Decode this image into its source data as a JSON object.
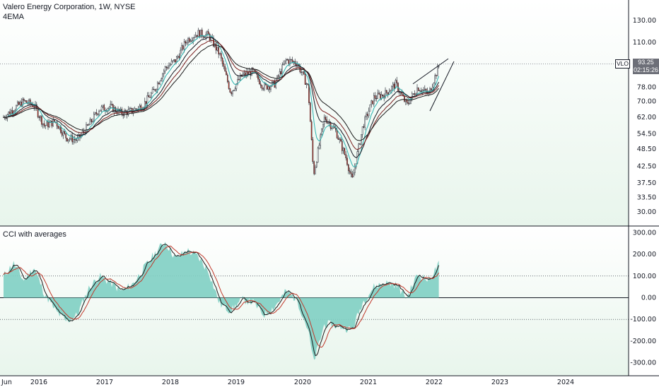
{
  "header": {
    "symbol_title": "Valero Energy Corporation, 1W, NYSE",
    "indicator_label": "4EMA",
    "pane_label": "CCI with averages",
    "price_badge": "VLO",
    "last_price": "93.25",
    "countdown": "02:15:26"
  },
  "colors": {
    "up_candle": "#ffffff",
    "down_candle": "#c0392b",
    "ema_fast": "#2ab3b0",
    "ema_mid1": "#131722",
    "ema_mid2": "#7a1f1f",
    "ema_slow": "#1a1a1a",
    "cci_fill": "#7fcfc3",
    "cci_line": "#1a1a1a",
    "cci_avg": "#c0392b",
    "trendline": "#131722"
  },
  "chart_data": [
    {
      "type": "candlestick",
      "title": "Valero Energy Corporation, 1W, NYSE",
      "y_scale": "log",
      "y_ticks": [
        "130.00",
        "110.00",
        "93.25",
        "78.00",
        "70.00",
        "62.00",
        "54.50",
        "48.50",
        "42.50",
        "37.50",
        "33.50",
        "30.00"
      ],
      "x_ticks": [
        "Jun",
        "2016",
        "2017",
        "2018",
        "2019",
        "2020",
        "2021",
        "2022",
        "2023",
        "2024"
      ],
      "close_series_approx": [
        {
          "date": "2015-06",
          "close": 62
        },
        {
          "date": "2015-08",
          "close": 66
        },
        {
          "date": "2015-10",
          "close": 70
        },
        {
          "date": "2015-12",
          "close": 68
        },
        {
          "date": "2016-02",
          "close": 58
        },
        {
          "date": "2016-04",
          "close": 60
        },
        {
          "date": "2016-06",
          "close": 53
        },
        {
          "date": "2016-08",
          "close": 52
        },
        {
          "date": "2016-10",
          "close": 58
        },
        {
          "date": "2016-12",
          "close": 66
        },
        {
          "date": "2017-02",
          "close": 67
        },
        {
          "date": "2017-04",
          "close": 64
        },
        {
          "date": "2017-06",
          "close": 65
        },
        {
          "date": "2017-08",
          "close": 68
        },
        {
          "date": "2017-10",
          "close": 76
        },
        {
          "date": "2017-12",
          "close": 90
        },
        {
          "date": "2018-02",
          "close": 96
        },
        {
          "date": "2018-04",
          "close": 112
        },
        {
          "date": "2018-06",
          "close": 118
        },
        {
          "date": "2018-08",
          "close": 116
        },
        {
          "date": "2018-10",
          "close": 100
        },
        {
          "date": "2018-12",
          "close": 75
        },
        {
          "date": "2019-02",
          "close": 85
        },
        {
          "date": "2019-04",
          "close": 88
        },
        {
          "date": "2019-06",
          "close": 78
        },
        {
          "date": "2019-08",
          "close": 80
        },
        {
          "date": "2019-10",
          "close": 96
        },
        {
          "date": "2019-12",
          "close": 94
        },
        {
          "date": "2020-02",
          "close": 78
        },
        {
          "date": "2020-03",
          "close": 40
        },
        {
          "date": "2020-05",
          "close": 62
        },
        {
          "date": "2020-07",
          "close": 56
        },
        {
          "date": "2020-09",
          "close": 45
        },
        {
          "date": "2020-10",
          "close": 38
        },
        {
          "date": "2020-12",
          "close": 58
        },
        {
          "date": "2021-02",
          "close": 72
        },
        {
          "date": "2021-04",
          "close": 74
        },
        {
          "date": "2021-06",
          "close": 80
        },
        {
          "date": "2021-08",
          "close": 68
        },
        {
          "date": "2021-10",
          "close": 78
        },
        {
          "date": "2021-12",
          "close": 74
        },
        {
          "date": "2022-02",
          "close": 93.25
        }
      ]
    },
    {
      "type": "area",
      "title": "CCI with averages",
      "y_ticks": [
        "300.00",
        "200.00",
        "100.00",
        "0.00",
        "-100.00",
        "-200.00",
        "-300.00"
      ],
      "reference_lines": [
        100,
        0,
        -100
      ],
      "cci_series_approx": [
        {
          "date": "2015-06",
          "value": 100
        },
        {
          "date": "2015-08",
          "value": 160
        },
        {
          "date": "2015-10",
          "value": 80
        },
        {
          "date": "2015-12",
          "value": 140
        },
        {
          "date": "2016-02",
          "value": 20
        },
        {
          "date": "2016-04",
          "value": -60
        },
        {
          "date": "2016-06",
          "value": -110
        },
        {
          "date": "2016-08",
          "value": -80
        },
        {
          "date": "2016-10",
          "value": 40
        },
        {
          "date": "2016-12",
          "value": 100
        },
        {
          "date": "2017-02",
          "value": 70
        },
        {
          "date": "2017-04",
          "value": 30
        },
        {
          "date": "2017-06",
          "value": 60
        },
        {
          "date": "2017-08",
          "value": 130
        },
        {
          "date": "2017-10",
          "value": 200
        },
        {
          "date": "2017-12",
          "value": 260
        },
        {
          "date": "2018-02",
          "value": 180
        },
        {
          "date": "2018-04",
          "value": 220
        },
        {
          "date": "2018-06",
          "value": 190
        },
        {
          "date": "2018-08",
          "value": 120
        },
        {
          "date": "2018-10",
          "value": -30
        },
        {
          "date": "2018-12",
          "value": -60
        },
        {
          "date": "2019-02",
          "value": -10
        },
        {
          "date": "2019-04",
          "value": -20
        },
        {
          "date": "2019-06",
          "value": -80
        },
        {
          "date": "2019-08",
          "value": -40
        },
        {
          "date": "2019-10",
          "value": 30
        },
        {
          "date": "2019-12",
          "value": -10
        },
        {
          "date": "2020-02",
          "value": -150
        },
        {
          "date": "2020-03",
          "value": -300
        },
        {
          "date": "2020-05",
          "value": -120
        },
        {
          "date": "2020-07",
          "value": -130
        },
        {
          "date": "2020-09",
          "value": -140
        },
        {
          "date": "2020-10",
          "value": -150
        },
        {
          "date": "2020-12",
          "value": -20
        },
        {
          "date": "2021-02",
          "value": 50
        },
        {
          "date": "2021-04",
          "value": 70
        },
        {
          "date": "2021-06",
          "value": 60
        },
        {
          "date": "2021-08",
          "value": 0
        },
        {
          "date": "2021-10",
          "value": 110
        },
        {
          "date": "2021-12",
          "value": 80
        },
        {
          "date": "2022-02",
          "value": 160
        }
      ]
    }
  ]
}
